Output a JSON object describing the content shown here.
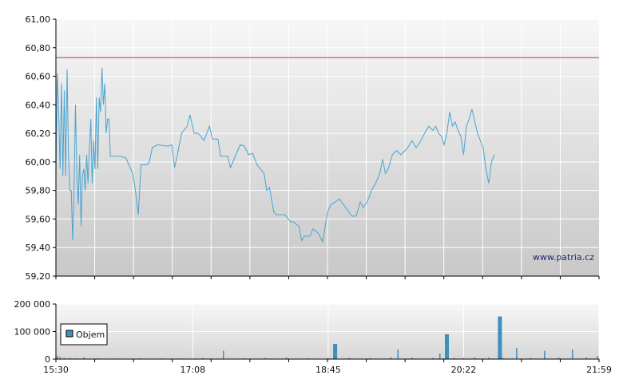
{
  "watermark": "www.patria.cz",
  "chart_data": [
    {
      "type": "line",
      "title": "",
      "xlabel": "",
      "ylabel": "",
      "x_unit": "time",
      "x_ticks": [
        "15:30",
        "17:08",
        "18:45",
        "20:22",
        "21:59"
      ],
      "y_ticks": [
        "59,20",
        "59,40",
        "59,60",
        "59,80",
        "60,00",
        "60,20",
        "60,40",
        "60,60",
        "60,80",
        "61,00"
      ],
      "ylim": [
        59.2,
        61.0
      ],
      "xlim": [
        "15:30",
        "21:59"
      ],
      "grid": true,
      "reference_line": {
        "value": 60.73,
        "color": "#c0392b"
      },
      "series": [
        {
          "color": "#4aa3d0",
          "points": [
            [
              "15:30",
              59.9
            ],
            [
              "15:31",
              60.62
            ],
            [
              "15:32",
              60.35
            ],
            [
              "15:33",
              59.95
            ],
            [
              "15:34",
              60.55
            ],
            [
              "15:35",
              59.9
            ],
            [
              "15:36",
              60.5
            ],
            [
              "15:37",
              59.9
            ],
            [
              "15:38",
              60.65
            ],
            [
              "15:39",
              60.05
            ],
            [
              "15:40",
              59.8
            ],
            [
              "15:41",
              59.8
            ],
            [
              "15:42",
              59.45
            ],
            [
              "15:43",
              59.8
            ],
            [
              "15:44",
              60.4
            ],
            [
              "15:45",
              59.9
            ],
            [
              "15:46",
              59.7
            ],
            [
              "15:47",
              60.05
            ],
            [
              "15:48",
              59.55
            ],
            [
              "15:49",
              59.9
            ],
            [
              "15:50",
              59.95
            ],
            [
              "15:51",
              59.8
            ],
            [
              "15:52",
              60.05
            ],
            [
              "15:53",
              59.85
            ],
            [
              "15:54",
              60.1
            ],
            [
              "15:55",
              60.3
            ],
            [
              "15:56",
              59.85
            ],
            [
              "15:57",
              60.15
            ],
            [
              "15:58",
              59.95
            ],
            [
              "15:59",
              60.45
            ],
            [
              "16:00",
              59.95
            ],
            [
              "16:01",
              60.45
            ],
            [
              "16:02",
              60.35
            ],
            [
              "16:03",
              60.66
            ],
            [
              "16:04",
              60.4
            ],
            [
              "16:05",
              60.55
            ],
            [
              "16:06",
              60.2
            ],
            [
              "16:07",
              60.3
            ],
            [
              "16:08",
              60.3
            ],
            [
              "16:09",
              60.04
            ],
            [
              "16:15",
              60.04
            ],
            [
              "16:20",
              60.03
            ],
            [
              "16:25",
              59.92
            ],
            [
              "16:27",
              59.8
            ],
            [
              "16:29",
              59.63
            ],
            [
              "16:31",
              59.98
            ],
            [
              "16:35",
              59.98
            ],
            [
              "16:37",
              60.0
            ],
            [
              "16:39",
              60.1
            ],
            [
              "16:43",
              60.12
            ],
            [
              "16:50",
              60.11
            ],
            [
              "16:53",
              60.12
            ],
            [
              "16:55",
              59.96
            ],
            [
              "16:57",
              60.05
            ],
            [
              "17:00",
              60.2
            ],
            [
              "17:04",
              60.25
            ],
            [
              "17:06",
              60.33
            ],
            [
              "17:09",
              60.2
            ],
            [
              "17:12",
              60.2
            ],
            [
              "17:16",
              60.15
            ],
            [
              "17:20",
              60.25
            ],
            [
              "17:22",
              60.16
            ],
            [
              "17:26",
              60.16
            ],
            [
              "17:28",
              60.04
            ],
            [
              "17:33",
              60.04
            ],
            [
              "17:35",
              59.96
            ],
            [
              "17:38",
              60.03
            ],
            [
              "17:42",
              60.12
            ],
            [
              "17:45",
              60.11
            ],
            [
              "17:48",
              60.05
            ],
            [
              "17:51",
              60.06
            ],
            [
              "17:54",
              59.98
            ],
            [
              "17:59",
              59.92
            ],
            [
              "18:01",
              59.8
            ],
            [
              "18:03",
              59.82
            ],
            [
              "18:06",
              59.65
            ],
            [
              "18:08",
              59.63
            ],
            [
              "18:14",
              59.63
            ],
            [
              "18:18",
              59.58
            ],
            [
              "18:20",
              59.58
            ],
            [
              "18:24",
              59.55
            ],
            [
              "18:26",
              59.45
            ],
            [
              "18:28",
              59.48
            ],
            [
              "18:32",
              59.48
            ],
            [
              "18:34",
              59.53
            ],
            [
              "18:38",
              59.5
            ],
            [
              "18:41",
              59.44
            ],
            [
              "18:43",
              59.56
            ],
            [
              "18:45",
              59.66
            ],
            [
              "18:47",
              59.7
            ],
            [
              "18:50",
              59.72
            ],
            [
              "18:53",
              59.74
            ],
            [
              "18:56",
              59.7
            ],
            [
              "18:59",
              59.66
            ],
            [
              "19:02",
              59.62
            ],
            [
              "19:05",
              59.62
            ],
            [
              "19:08",
              59.72
            ],
            [
              "19:10",
              59.68
            ],
            [
              "19:13",
              59.72
            ],
            [
              "19:16",
              59.8
            ],
            [
              "19:19",
              59.85
            ],
            [
              "19:22",
              59.92
            ],
            [
              "19:24",
              60.02
            ],
            [
              "19:26",
              59.92
            ],
            [
              "19:28",
              59.95
            ],
            [
              "19:31",
              60.05
            ],
            [
              "19:34",
              60.08
            ],
            [
              "19:37",
              60.05
            ],
            [
              "19:40",
              60.08
            ],
            [
              "19:42",
              60.1
            ],
            [
              "19:45",
              60.15
            ],
            [
              "19:48",
              60.1
            ],
            [
              "19:51",
              60.14
            ],
            [
              "19:54",
              60.2
            ],
            [
              "19:57",
              60.25
            ],
            [
              "20:00",
              60.22
            ],
            [
              "20:02",
              60.25
            ],
            [
              "20:04",
              60.2
            ],
            [
              "20:06",
              60.18
            ],
            [
              "20:08",
              60.12
            ],
            [
              "20:10",
              60.2
            ],
            [
              "20:12",
              60.35
            ],
            [
              "20:14",
              60.25
            ],
            [
              "20:16",
              60.28
            ],
            [
              "20:18",
              60.22
            ],
            [
              "20:20",
              60.18
            ],
            [
              "20:22",
              60.05
            ],
            [
              "20:24",
              60.25
            ],
            [
              "20:26",
              60.3
            ],
            [
              "20:28",
              60.37
            ],
            [
              "20:30",
              60.28
            ],
            [
              "20:32",
              60.2
            ],
            [
              "20:34",
              60.15
            ],
            [
              "20:36",
              60.1
            ],
            [
              "20:38",
              59.95
            ],
            [
              "20:40",
              59.85
            ],
            [
              "20:42",
              60.0
            ],
            [
              "20:44",
              60.05
            ]
          ]
        }
      ]
    },
    {
      "type": "bar",
      "title": "",
      "xlabel": "",
      "ylabel": "",
      "x_ticks": [
        "15:30",
        "17:08",
        "18:45",
        "20:22",
        "21:59"
      ],
      "y_ticks": [
        "0",
        "100 000",
        "200 000"
      ],
      "ylim": [
        0,
        200000
      ],
      "grid": true,
      "legend": {
        "label": "Objem",
        "placement": "middle-left"
      },
      "series": [
        {
          "name": "Objem",
          "color": "#3f8fbf",
          "points": [
            [
              "15:31",
              12000
            ],
            [
              "15:33",
              8000
            ],
            [
              "15:36",
              5000
            ],
            [
              "15:40",
              4000
            ],
            [
              "15:45",
              3000
            ],
            [
              "15:50",
              6000
            ],
            [
              "16:00",
              3000
            ],
            [
              "16:15",
              2000
            ],
            [
              "16:30",
              3000
            ],
            [
              "16:45",
              2500
            ],
            [
              "17:00",
              3000
            ],
            [
              "17:15",
              4000
            ],
            [
              "17:30",
              5000
            ],
            [
              "17:45",
              3000
            ],
            [
              "18:00",
              4000
            ],
            [
              "18:15",
              6000
            ],
            [
              "18:30",
              3000
            ],
            [
              "18:45",
              4000
            ],
            [
              "19:00",
              5000
            ],
            [
              "19:15",
              4000
            ],
            [
              "19:30",
              6000
            ],
            [
              "19:45",
              5000
            ],
            [
              "20:00",
              4000
            ],
            [
              "20:10",
              90000
            ],
            [
              "20:15",
              5000
            ],
            [
              "20:22",
              4000
            ],
            [
              "20:30",
              6000
            ],
            [
              "20:40",
              5000
            ],
            [
              "20:50",
              4000
            ],
            [
              "21:00",
              6000
            ],
            [
              "21:10",
              5000
            ],
            [
              "21:20",
              6000
            ],
            [
              "21:30",
              5000
            ],
            [
              "21:40",
              7000
            ],
            [
              "21:50",
              6000
            ],
            [
              "21:58",
              12000
            ],
            [
              "20:48",
              155000
            ],
            [
              "17:30",
              30000
            ],
            [
              "18:50",
              55000
            ],
            [
              "19:35",
              35000
            ],
            [
              "20:05",
              20000
            ],
            [
              "21:00",
              40000
            ],
            [
              "21:20",
              30000
            ],
            [
              "21:40",
              35000
            ]
          ]
        }
      ]
    }
  ]
}
